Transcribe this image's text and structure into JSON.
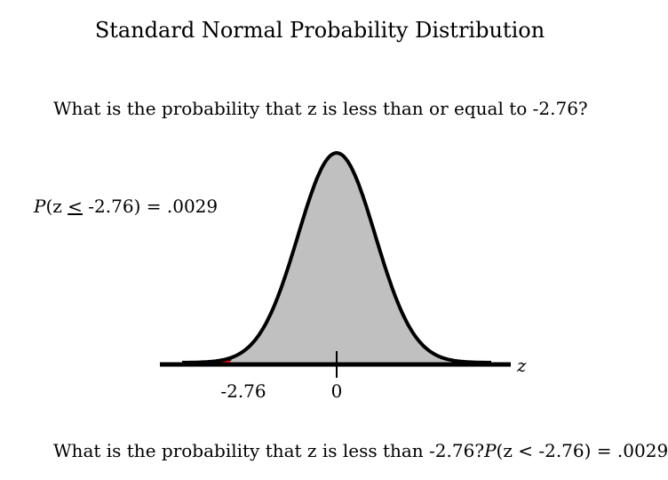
{
  "title": "Standard Normal Probability Distribution",
  "question_1": "What is the probability that z is less than or equal to -2.76?",
  "prob_label": {
    "P": "P",
    "open": "(z ",
    "le": "<",
    "rest": " -2.76) = .0029"
  },
  "axis_label": "z",
  "tick_labels": {
    "cutoff": "-2.76",
    "zero": "0"
  },
  "question_2": {
    "text": "What is the probability that z is less than -2.76?",
    "P": "P",
    "rest": "(z < -2.76) = .0029"
  },
  "colors": {
    "curve_fill": "#c0c0c0",
    "tail_fill": "#ff0000",
    "stroke": "#000000"
  },
  "chart_data": {
    "type": "area",
    "distribution": "standard normal",
    "x_range": [
      -4,
      4
    ],
    "shaded_region": {
      "from": -4,
      "to": -2.76,
      "probability": 0.0029
    },
    "xlabel": "z"
  }
}
